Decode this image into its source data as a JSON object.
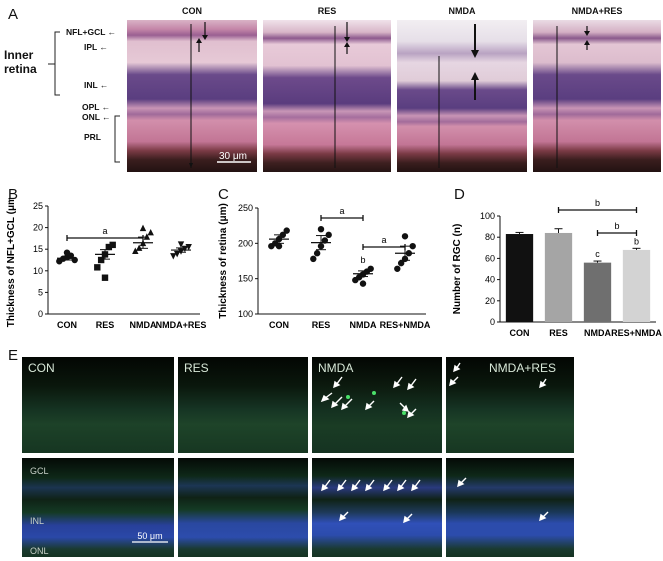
{
  "panel_a": {
    "letter": "A",
    "groups": [
      "CON",
      "RES",
      "NMDA",
      "NMDA+RES"
    ],
    "inner_label": [
      "Inner",
      "retina"
    ],
    "layers": [
      "NFL+GCL",
      "IPL",
      "INL",
      "OPL",
      "ONL",
      "PRL"
    ],
    "scale_bar": "30 μm"
  },
  "panel_e": {
    "letter": "E",
    "groups": [
      "CON",
      "RES",
      "NMDA",
      "NMDA+RES"
    ],
    "layers": [
      "GCL",
      "INL",
      "ONL"
    ],
    "scale_bar": "50 μm"
  },
  "chart_data": [
    {
      "panel": "B",
      "type": "scatter",
      "categories": [
        "CON",
        "RES",
        "NMDA",
        "NMDA+RES"
      ],
      "ylabel": "Thickness of NFL+GCL (μm)",
      "ylim": [
        0,
        25
      ],
      "yticks": [
        0,
        5,
        10,
        15,
        20,
        25
      ],
      "markers": [
        "circle",
        "square",
        "triangle",
        "inverted-triangle"
      ],
      "points": [
        [
          12.2,
          12.8,
          13.1,
          13.5,
          12.5,
          14.2
        ],
        [
          10.8,
          12.5,
          13.8,
          15.5,
          16.0,
          8.4
        ],
        [
          14.5,
          15.2,
          16.3,
          17.8,
          18.8,
          19.8
        ],
        [
          13.5,
          14.0,
          14.6,
          15.2,
          15.6,
          16.2
        ]
      ],
      "means": [
        12.9,
        13.8,
        16.5,
        14.8
      ],
      "sem": [
        0.4,
        1.1,
        1.3,
        0.5
      ],
      "significance": [
        {
          "from": 0,
          "to": 2,
          "label": "a"
        }
      ]
    },
    {
      "panel": "C",
      "type": "scatter",
      "categories": [
        "CON",
        "RES",
        "NMDA",
        "RES+NMDA"
      ],
      "ylabel": "Thickness of retina (μm)",
      "ylim": [
        100,
        250
      ],
      "yticks": [
        100,
        150,
        200,
        250
      ],
      "points": [
        [
          196,
          200,
          206,
          212,
          218,
          196
        ],
        [
          178,
          186,
          196,
          204,
          212,
          220
        ],
        [
          148,
          152,
          156,
          160,
          164,
          143
        ],
        [
          164,
          172,
          178,
          186,
          196,
          210
        ]
      ],
      "means": [
        206,
        201,
        157,
        186
      ],
      "sem": [
        6,
        10,
        4,
        10
      ],
      "letters": [
        {
          "index": 2,
          "label": "b"
        }
      ],
      "significance": [
        {
          "from": 1,
          "to": 2,
          "label": "a"
        },
        {
          "from": 2,
          "to": 3,
          "label": "a"
        }
      ]
    },
    {
      "panel": "D",
      "type": "bar",
      "categories": [
        "CON",
        "RES",
        "NMDA",
        "RES+NMDA"
      ],
      "ylabel": "Number of RGC (n)",
      "ylim": [
        0,
        100
      ],
      "yticks": [
        0,
        20,
        40,
        60,
        80,
        100
      ],
      "values": [
        83,
        84,
        56,
        68
      ],
      "errors": [
        1.5,
        4,
        1.5,
        1.5
      ],
      "colors": [
        "#111111",
        "#a5a5a5",
        "#6f6f6f",
        "#d3d3d3"
      ],
      "letters": [
        {
          "index": 2,
          "label": "c"
        },
        {
          "index": 3,
          "label": "b"
        }
      ],
      "significance": [
        {
          "from": 1,
          "to": 3,
          "label": "b"
        },
        {
          "from": 2,
          "to": 3,
          "label": "b"
        }
      ]
    }
  ]
}
